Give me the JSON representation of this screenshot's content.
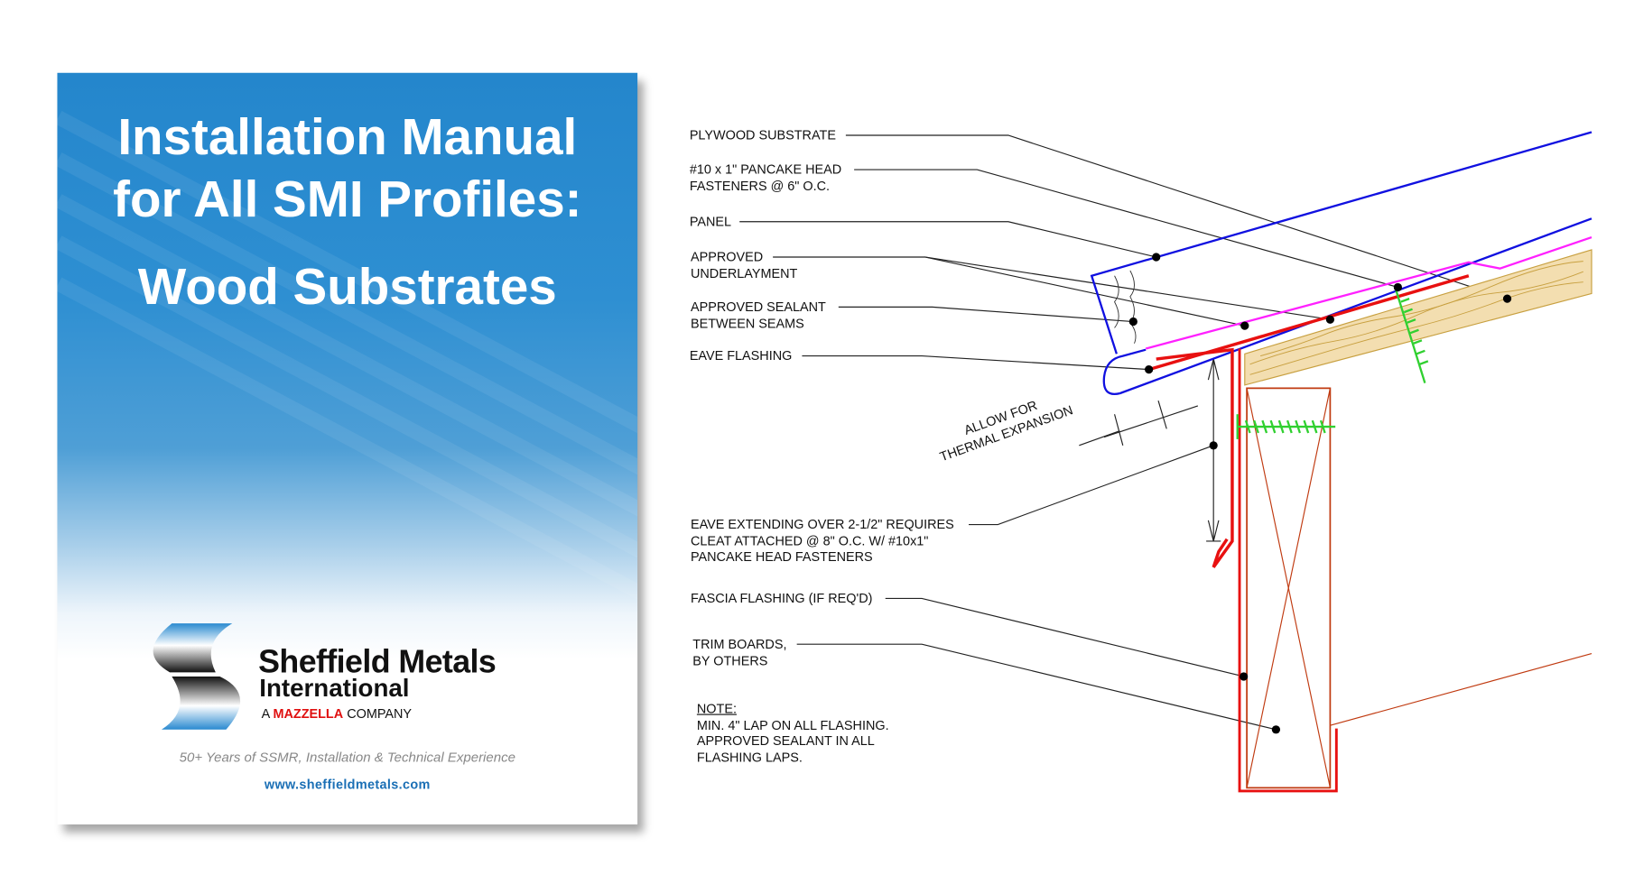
{
  "cover": {
    "title_line1": "Installation Manual",
    "title_line2": "for All SMI Profiles:",
    "title_line3": "Wood Substrates",
    "brand_name": "Sheffield Metals",
    "brand_sub": "International",
    "brand_parent_prefix": "A",
    "brand_parent": "MAZZELLA",
    "brand_parent_suffix": "COMPANY",
    "tagline": "50+ Years of SSMR, Installation & Technical Experience",
    "url": "www.sheffieldmetals.com",
    "colors": {
      "cover_blue": "#2486cc",
      "mazzella_red": "#e01010",
      "url_blue": "#1a6fb5"
    }
  },
  "diagram": {
    "labels": {
      "plywood": "PLYWOOD SUBSTRATE",
      "fasteners_1": "#10 x 1\" PANCAKE HEAD",
      "fasteners_2": "FASTENERS @ 6\" O.C.",
      "panel": "PANEL",
      "underlayment_1": "APPROVED",
      "underlayment_2": "UNDERLAYMENT",
      "sealant_1": "APPROVED SEALANT",
      "sealant_2": "BETWEEN SEAMS",
      "eave_flashing": "EAVE FLASHING",
      "expansion_1": "ALLOW FOR",
      "expansion_2": "THERMAL EXPANSION",
      "cleat_1": "EAVE EXTENDING OVER 2-1/2\" REQUIRES",
      "cleat_2": "CLEAT ATTACHED @ 8\" O.C. W/ #10x1\"",
      "cleat_3": "PANCAKE HEAD FASTENERS",
      "fascia": "FASCIA FLASHING (IF REQ'D)",
      "trim_1": "TRIM BOARDS,",
      "trim_2": "BY OTHERS",
      "note_title": "NOTE:",
      "note_1": "MIN. 4\" LAP ON ALL FLASHING.",
      "note_2": "APPROVED SEALANT IN ALL",
      "note_3": "FLASHING LAPS."
    },
    "colors": {
      "panel": "#1010e0",
      "flashing": "#e81010",
      "underlayment": "#ff20ff",
      "wood": "#c8a040",
      "screw": "#30d030",
      "trim": "#c03a10"
    }
  }
}
